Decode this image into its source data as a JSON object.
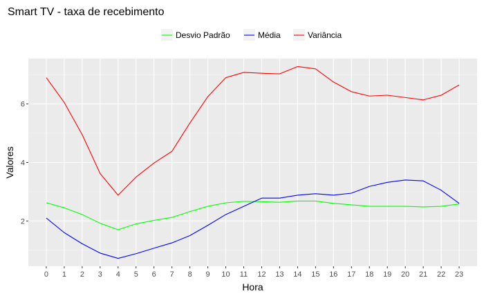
{
  "chart_data": {
    "type": "line",
    "title": "Smart TV - taxa de recebimento",
    "xlabel": "Hora",
    "ylabel": "Valores",
    "x": [
      0,
      1,
      2,
      3,
      4,
      5,
      6,
      7,
      8,
      9,
      10,
      11,
      12,
      13,
      14,
      15,
      16,
      17,
      18,
      19,
      20,
      21,
      22,
      23
    ],
    "xlim": [
      -1,
      24
    ],
    "ylim": [
      0.45,
      7.55
    ],
    "y_ticks": [
      2,
      4,
      6
    ],
    "grid": true,
    "legend_position": "top",
    "panel_background": "#ebebeb",
    "series": [
      {
        "name": "Desvio Padrão",
        "color": "#00ff00",
        "values": [
          2.62,
          2.45,
          2.22,
          1.92,
          1.7,
          1.9,
          2.02,
          2.12,
          2.32,
          2.5,
          2.62,
          2.67,
          2.66,
          2.64,
          2.68,
          2.68,
          2.6,
          2.55,
          2.5,
          2.5,
          2.5,
          2.48,
          2.5,
          2.58
        ]
      },
      {
        "name": "Média",
        "color": "#0000ff",
        "values": [
          2.1,
          1.6,
          1.22,
          0.9,
          0.72,
          0.88,
          1.07,
          1.25,
          1.5,
          1.85,
          2.22,
          2.5,
          2.78,
          2.78,
          2.88,
          2.93,
          2.88,
          2.95,
          3.18,
          3.32,
          3.4,
          3.37,
          3.05,
          2.6
        ]
      },
      {
        "name": "Variância",
        "color": "#ff0000",
        "values": [
          6.9,
          6.05,
          4.95,
          3.62,
          2.88,
          3.5,
          3.98,
          4.38,
          5.35,
          6.25,
          6.9,
          7.08,
          7.05,
          7.03,
          7.28,
          7.2,
          6.75,
          6.42,
          6.27,
          6.3,
          6.22,
          6.14,
          6.3,
          6.65
        ]
      }
    ]
  }
}
